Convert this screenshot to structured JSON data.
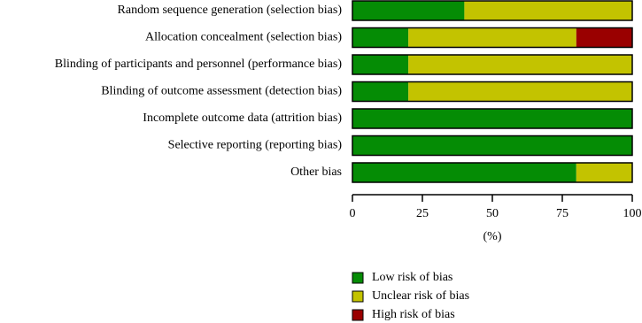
{
  "chart_data": {
    "type": "bar",
    "orientation": "horizontal",
    "stacked": true,
    "categories": [
      "Random sequence generation (selection bias)",
      "Allocation concealment (selection bias)",
      "Blinding of participants and personnel (performance bias)",
      "Blinding of outcome assessment (detection bias)",
      "Incomplete outcome data (attrition bias)",
      "Selective reporting (reporting bias)",
      "Other bias"
    ],
    "series": [
      {
        "name": "Low risk of bias",
        "color": "#058c05",
        "values": [
          40,
          20,
          20,
          20,
          100,
          100,
          80
        ]
      },
      {
        "name": "Unclear risk of bias",
        "color": "#c3c300",
        "values": [
          60,
          60,
          80,
          80,
          0,
          0,
          20
        ]
      },
      {
        "name": "High risk of bias",
        "color": "#9a0000",
        "values": [
          0,
          20,
          0,
          0,
          0,
          0,
          0
        ]
      }
    ],
    "xlabel": "(%)",
    "xlim": [
      0,
      100
    ],
    "xticks": [
      0,
      25,
      50,
      75,
      100
    ]
  }
}
